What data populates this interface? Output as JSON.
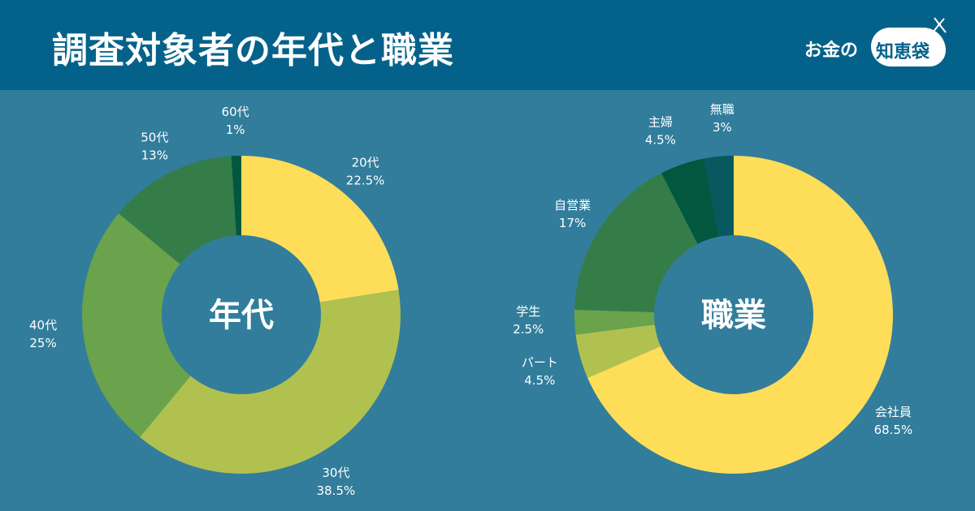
{
  "header": {
    "title": "調査対象者の年代と職業",
    "logo_text": "お金の",
    "logo_bag_text": "知恵袋"
  },
  "colors": {
    "background": "#317d9b",
    "header": "#04628a",
    "yellow": "#fedd59",
    "light_green": "#b0c150",
    "mid_green": "#6aa34c",
    "green": "#357d48",
    "dark_green": "#02573f",
    "dark_teal": "#07585f"
  },
  "chart_data": [
    {
      "type": "pie",
      "title": "年代",
      "donut": true,
      "slices": [
        {
          "label": "20代",
          "value": 22.5,
          "value_label": "22.5%",
          "color": "#fedd59"
        },
        {
          "label": "30代",
          "value": 38.5,
          "value_label": "38.5%",
          "color": "#b0c150"
        },
        {
          "label": "40代",
          "value": 25,
          "value_label": "25%",
          "color": "#6aa34c"
        },
        {
          "label": "50代",
          "value": 13,
          "value_label": "13%",
          "color": "#357d48"
        },
        {
          "label": "60代",
          "value": 1,
          "value_label": "1%",
          "color": "#02573f"
        }
      ]
    },
    {
      "type": "pie",
      "title": "職業",
      "donut": true,
      "slices": [
        {
          "label": "会社員",
          "value": 68.5,
          "value_label": "68.5%",
          "color": "#fedd59"
        },
        {
          "label": "パート",
          "value": 4.5,
          "value_label": "4.5%",
          "color": "#b0c150"
        },
        {
          "label": "学生",
          "value": 2.5,
          "value_label": "2.5%",
          "color": "#6aa34c"
        },
        {
          "label": "自営業",
          "value": 17,
          "value_label": "17%",
          "color": "#357d48"
        },
        {
          "label": "主婦",
          "value": 4.5,
          "value_label": "4.5%",
          "color": "#02573f"
        },
        {
          "label": "無職",
          "value": 3,
          "value_label": "3%",
          "color": "#07585f"
        }
      ]
    }
  ]
}
